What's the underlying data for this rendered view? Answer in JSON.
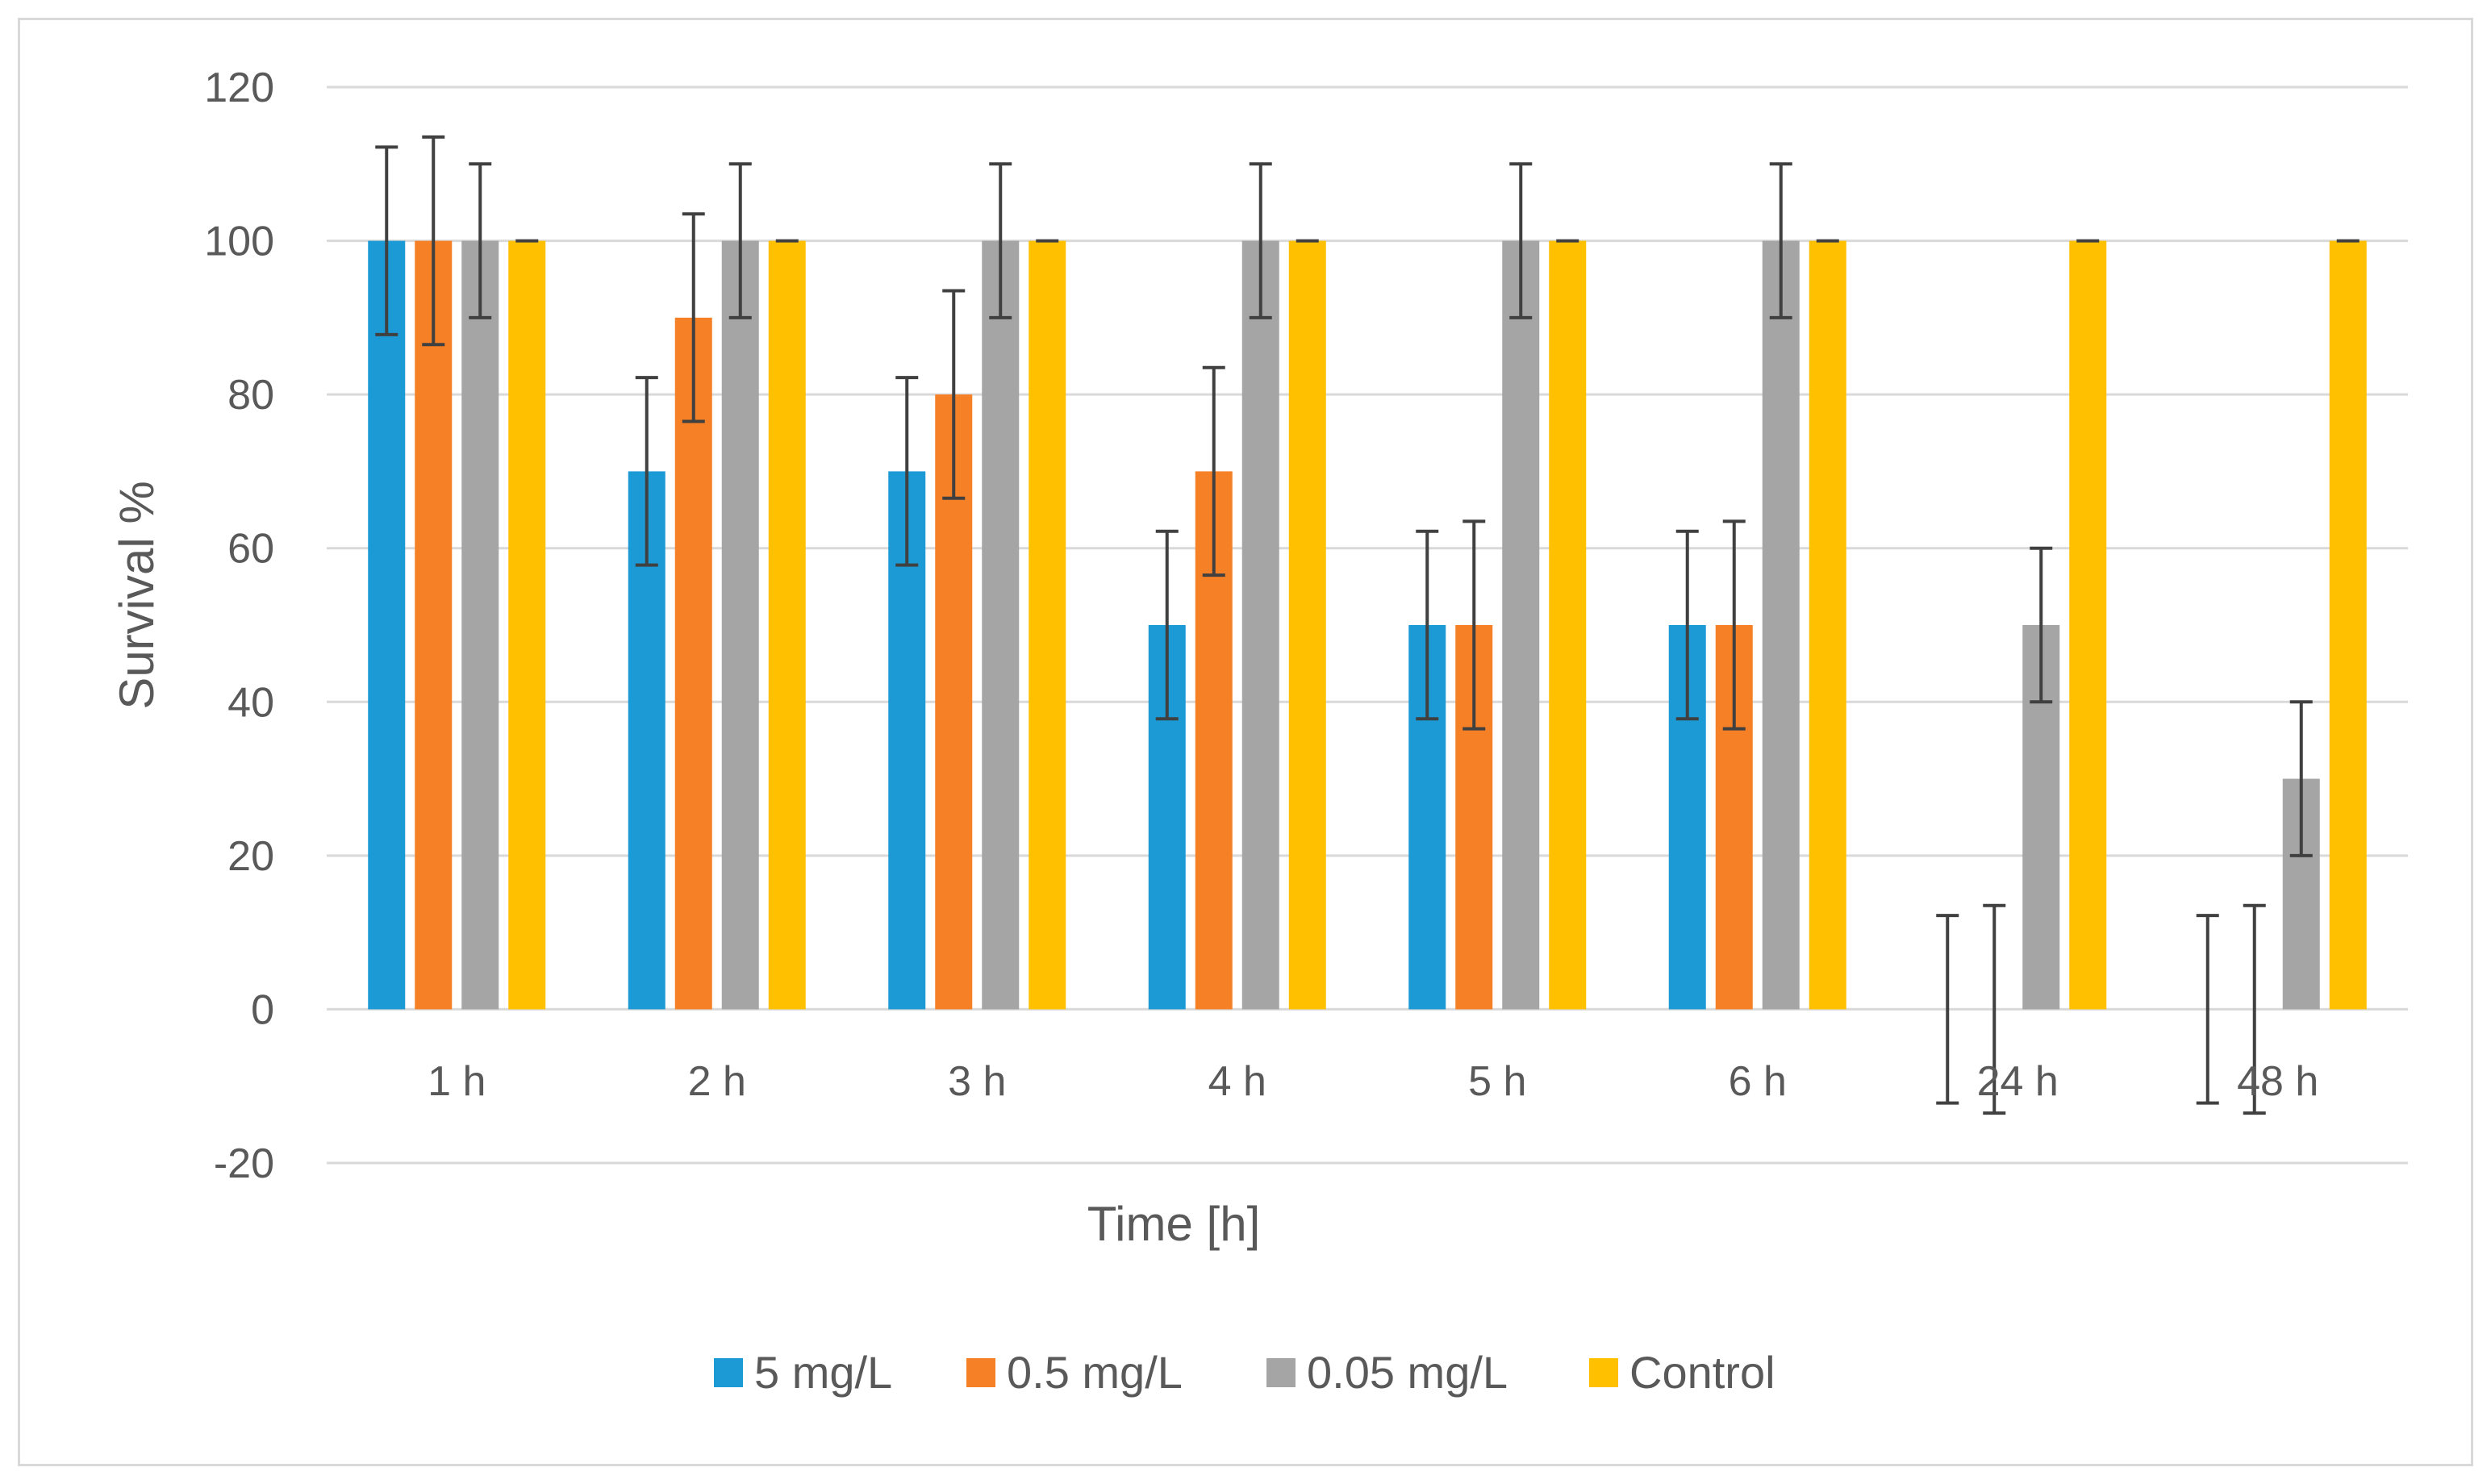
{
  "chart_data": {
    "type": "bar",
    "title": "",
    "xlabel": "Time [h]",
    "ylabel": "Survival %",
    "ylim": [
      -20,
      120
    ],
    "yticks": [
      -20,
      0,
      20,
      40,
      60,
      80,
      100,
      120
    ],
    "grid": true,
    "legend_position": "bottom",
    "categories": [
      "1 h",
      "2 h",
      "3 h",
      "4 h",
      "5 h",
      "6 h",
      "24 h",
      "48 h"
    ],
    "series": [
      {
        "name": "5 mg/L",
        "color": "#1b9ad6",
        "values": [
          100,
          70,
          70,
          50,
          50,
          50,
          0,
          0
        ],
        "errors": [
          12.2,
          12.2,
          12.2,
          12.2,
          12.2,
          12.2,
          12.2,
          12.2
        ]
      },
      {
        "name": "0.5 mg/L",
        "color": "#f58025",
        "values": [
          100,
          90,
          80,
          70,
          50,
          50,
          0,
          0
        ],
        "errors": [
          13.5,
          13.5,
          13.5,
          13.5,
          13.5,
          13.5,
          13.5,
          13.5
        ]
      },
      {
        "name": "0.05 mg/L",
        "color": "#a5a5a5",
        "values": [
          100,
          100,
          100,
          100,
          100,
          100,
          50,
          30
        ],
        "errors": [
          10,
          10,
          10,
          10,
          10,
          10,
          10,
          10
        ]
      },
      {
        "name": "Control",
        "color": "#ffc000",
        "values": [
          100,
          100,
          100,
          100,
          100,
          100,
          100,
          100
        ],
        "errors": [
          0,
          0,
          0,
          0,
          0,
          0,
          0,
          0
        ]
      }
    ]
  }
}
